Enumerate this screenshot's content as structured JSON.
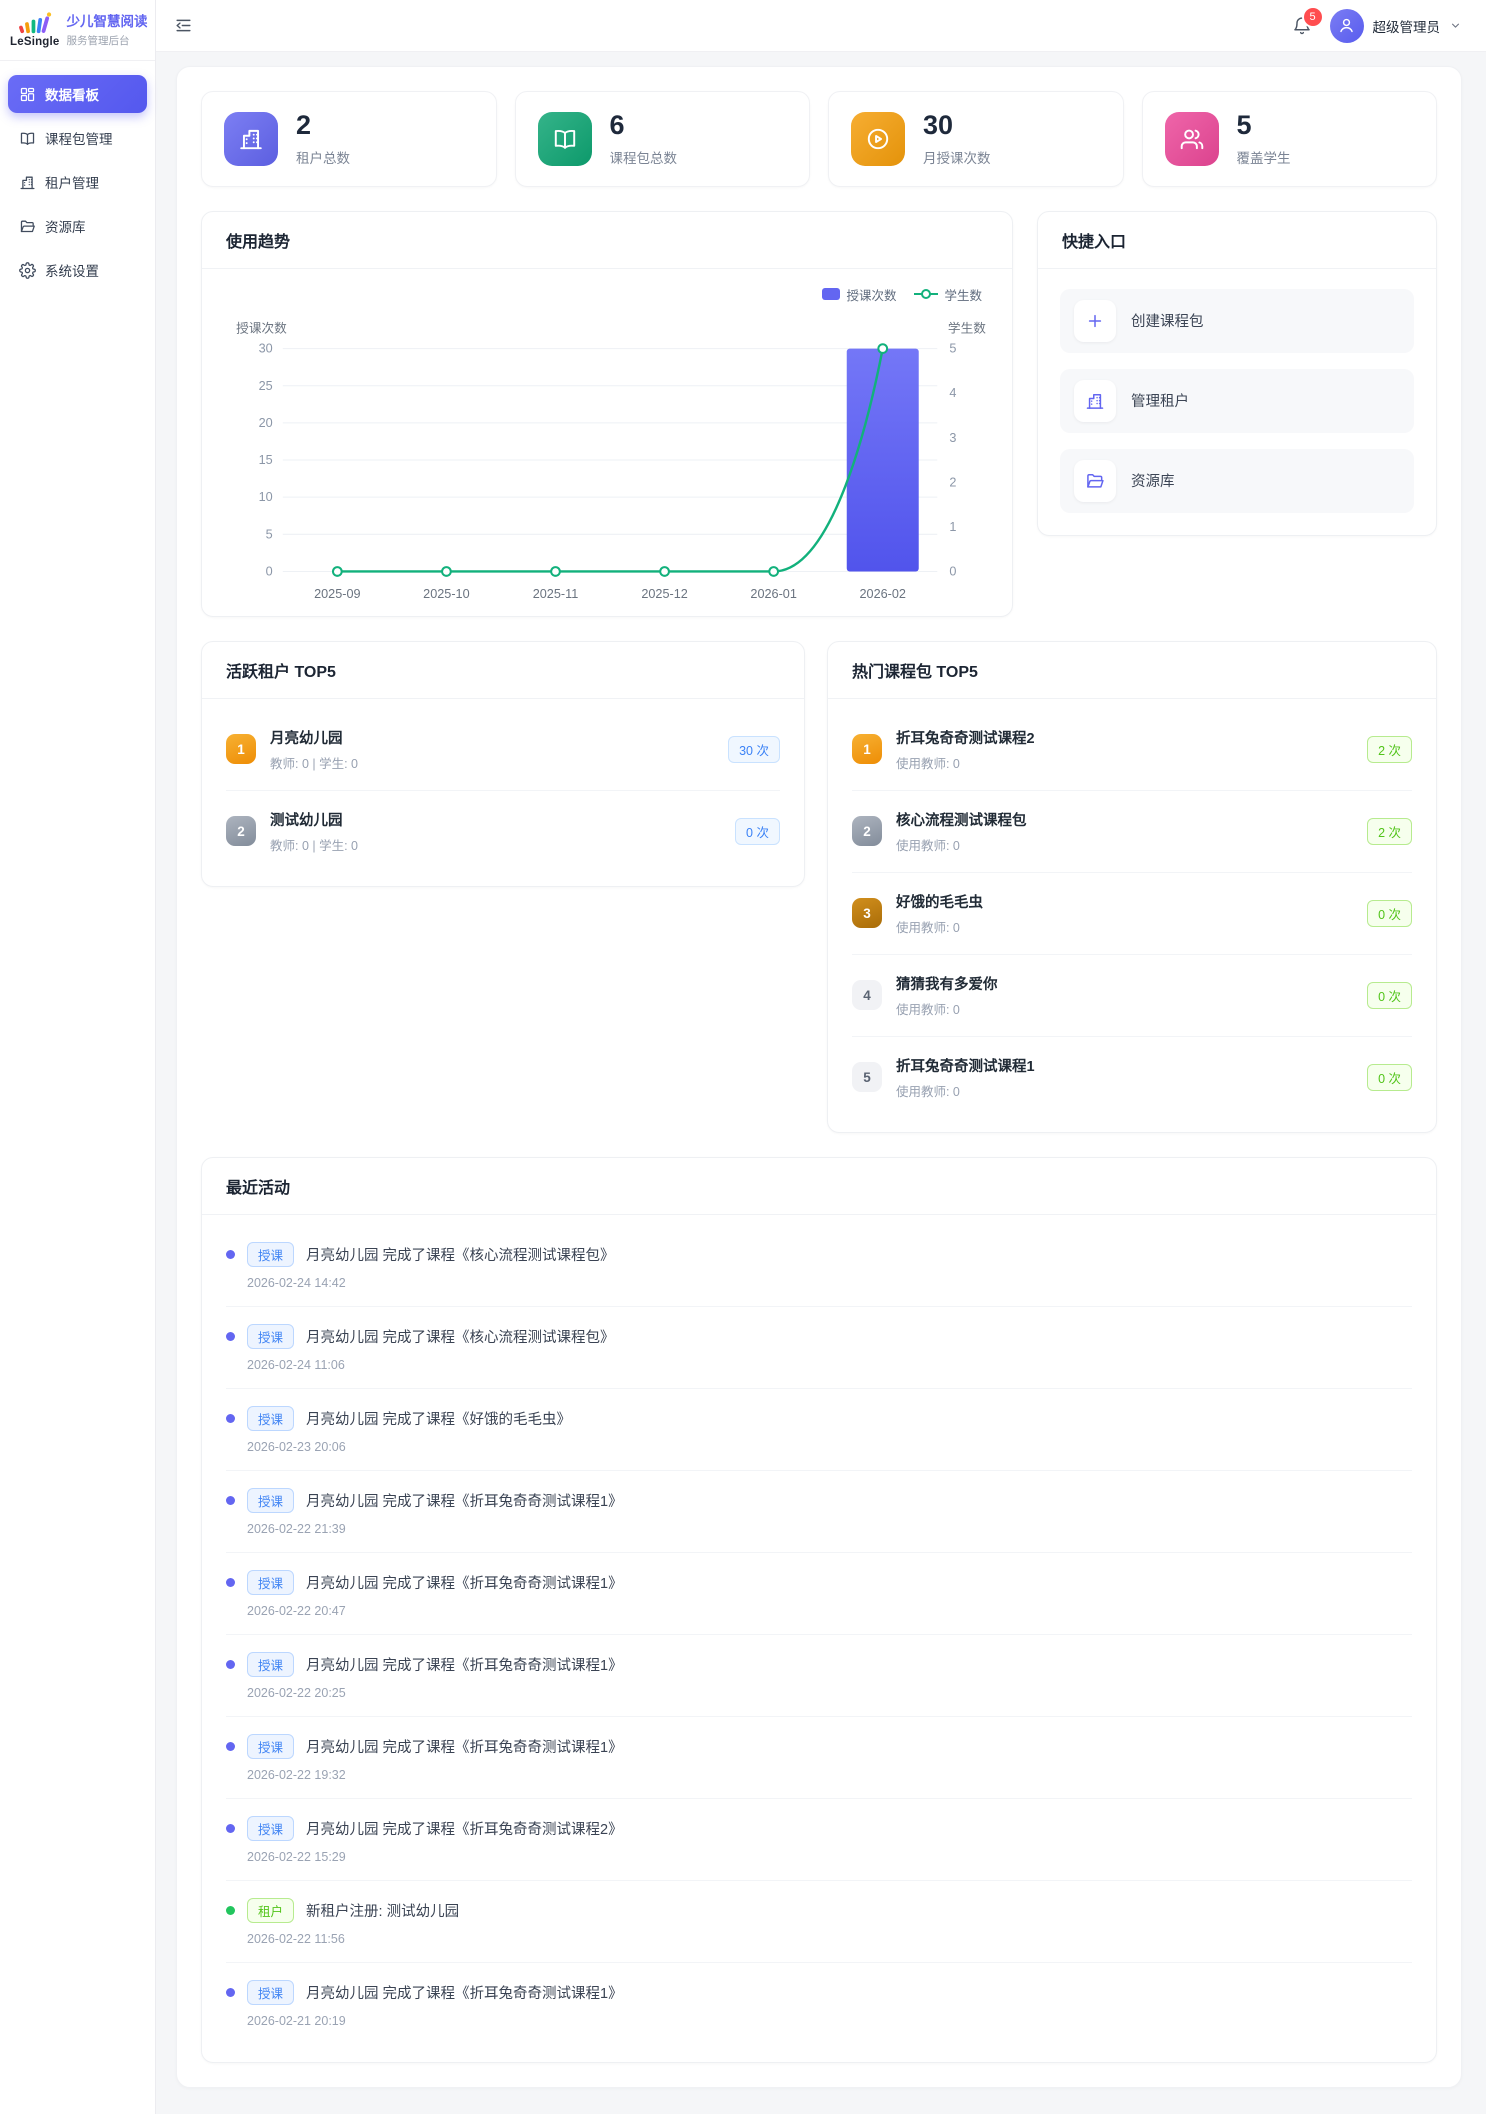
{
  "theme": {
    "primary": "#6366f1",
    "success": "#52c41a",
    "danger": "#ff4d4f"
  },
  "sidebar": {
    "logo": {
      "brand": "LeSingle",
      "title": "少儿智慧阅读",
      "subtitle": "服务管理后台"
    },
    "items": [
      {
        "key": "dashboard",
        "label": "数据看板",
        "icon": "dashboard-icon",
        "active": true
      },
      {
        "key": "course-packages",
        "label": "课程包管理",
        "icon": "book-icon",
        "active": false
      },
      {
        "key": "tenants",
        "label": "租户管理",
        "icon": "building-icon",
        "active": false
      },
      {
        "key": "resources",
        "label": "资源库",
        "icon": "folder-icon",
        "active": false
      },
      {
        "key": "settings",
        "label": "系统设置",
        "icon": "gear-icon",
        "active": false
      }
    ]
  },
  "header": {
    "notification_count": "5",
    "user_name": "超级管理员"
  },
  "stats": [
    {
      "key": "tenants",
      "value": "2",
      "label": "租户总数",
      "icon": "building-icon",
      "color": "#6366f1"
    },
    {
      "key": "packages",
      "value": "6",
      "label": "课程包总数",
      "icon": "book-icon",
      "color": "#0ea573"
    },
    {
      "key": "sessions",
      "value": "30",
      "label": "月授课次数",
      "icon": "play-icon",
      "color": "#f59e0b"
    },
    {
      "key": "students",
      "value": "5",
      "label": "覆盖学生",
      "icon": "students-icon",
      "color": "#ec4899"
    }
  ],
  "usage_trend": {
    "title": "使用趋势"
  },
  "chart_data": {
    "type": "bar",
    "title": "使用趋势",
    "categories": [
      "2025-09",
      "2025-10",
      "2025-11",
      "2025-12",
      "2026-01",
      "2026-02"
    ],
    "series": [
      {
        "name": "授课次数",
        "type": "bar",
        "axis": "left",
        "values": [
          0,
          0,
          0,
          0,
          0,
          30
        ],
        "color": "#6366f1"
      },
      {
        "name": "学生数",
        "type": "line",
        "axis": "right",
        "values": [
          0,
          0,
          0,
          0,
          0,
          5
        ],
        "color": "#12b17c"
      }
    ],
    "left_axis": {
      "label": "授课次数",
      "min": 0,
      "max": 30,
      "ticks": [
        0,
        5,
        10,
        15,
        20,
        25,
        30
      ]
    },
    "right_axis": {
      "label": "学生数",
      "min": 0,
      "max": 5,
      "ticks": [
        0,
        1,
        2,
        3,
        4,
        5
      ]
    },
    "grid": true,
    "legend_position": "top-right"
  },
  "quick_entries": {
    "title": "快捷入口",
    "items": [
      {
        "key": "create-package",
        "label": "创建课程包",
        "icon": "plus-icon"
      },
      {
        "key": "manage-tenants",
        "label": "管理租户",
        "icon": "building-icon"
      },
      {
        "key": "resource-library",
        "label": "资源库",
        "icon": "folder-icon"
      }
    ]
  },
  "active_tenants": {
    "title": "活跃租户 TOP5",
    "items": [
      {
        "rank": "1",
        "name": "月亮幼儿园",
        "meta": "教师: 0 | 学生: 0",
        "count": "30 次"
      },
      {
        "rank": "2",
        "name": "测试幼儿园",
        "meta": "教师: 0 | 学生: 0",
        "count": "0 次"
      }
    ]
  },
  "hot_packages": {
    "title": "热门课程包 TOP5",
    "items": [
      {
        "rank": "1",
        "name": "折耳兔奇奇测试课程2",
        "meta": "使用教师: 0",
        "count": "2 次"
      },
      {
        "rank": "2",
        "name": "核心流程测试课程包",
        "meta": "使用教师: 0",
        "count": "2 次"
      },
      {
        "rank": "3",
        "name": "好饿的毛毛虫",
        "meta": "使用教师: 0",
        "count": "0 次"
      },
      {
        "rank": "4",
        "name": "猜猜我有多爱你",
        "meta": "使用教师: 0",
        "count": "0 次"
      },
      {
        "rank": "5",
        "name": "折耳兔奇奇测试课程1",
        "meta": "使用教师: 0",
        "count": "0 次"
      }
    ]
  },
  "recent_activities": {
    "title": "最近活动",
    "items": [
      {
        "tag": "授课",
        "type": "teach",
        "text": "月亮幼儿园 完成了课程《核心流程测试课程包》",
        "time": "2026-02-24 14:42"
      },
      {
        "tag": "授课",
        "type": "teach",
        "text": "月亮幼儿园 完成了课程《核心流程测试课程包》",
        "time": "2026-02-24 11:06"
      },
      {
        "tag": "授课",
        "type": "teach",
        "text": "月亮幼儿园 完成了课程《好饿的毛毛虫》",
        "time": "2026-02-23 20:06"
      },
      {
        "tag": "授课",
        "type": "teach",
        "text": "月亮幼儿园 完成了课程《折耳兔奇奇测试课程1》",
        "time": "2026-02-22 21:39"
      },
      {
        "tag": "授课",
        "type": "teach",
        "text": "月亮幼儿园 完成了课程《折耳兔奇奇测试课程1》",
        "time": "2026-02-22 20:47"
      },
      {
        "tag": "授课",
        "type": "teach",
        "text": "月亮幼儿园 完成了课程《折耳兔奇奇测试课程1》",
        "time": "2026-02-22 20:25"
      },
      {
        "tag": "授课",
        "type": "teach",
        "text": "月亮幼儿园 完成了课程《折耳兔奇奇测试课程1》",
        "time": "2026-02-22 19:32"
      },
      {
        "tag": "授课",
        "type": "teach",
        "text": "月亮幼儿园 完成了课程《折耳兔奇奇测试课程2》",
        "time": "2026-02-22 15:29"
      },
      {
        "tag": "租户",
        "type": "tenant",
        "text": "新租户注册: 测试幼儿园",
        "time": "2026-02-22 11:56"
      },
      {
        "tag": "授课",
        "type": "teach",
        "text": "月亮幼儿园 完成了课程《折耳兔奇奇测试课程1》",
        "time": "2026-02-21 20:19"
      }
    ]
  }
}
